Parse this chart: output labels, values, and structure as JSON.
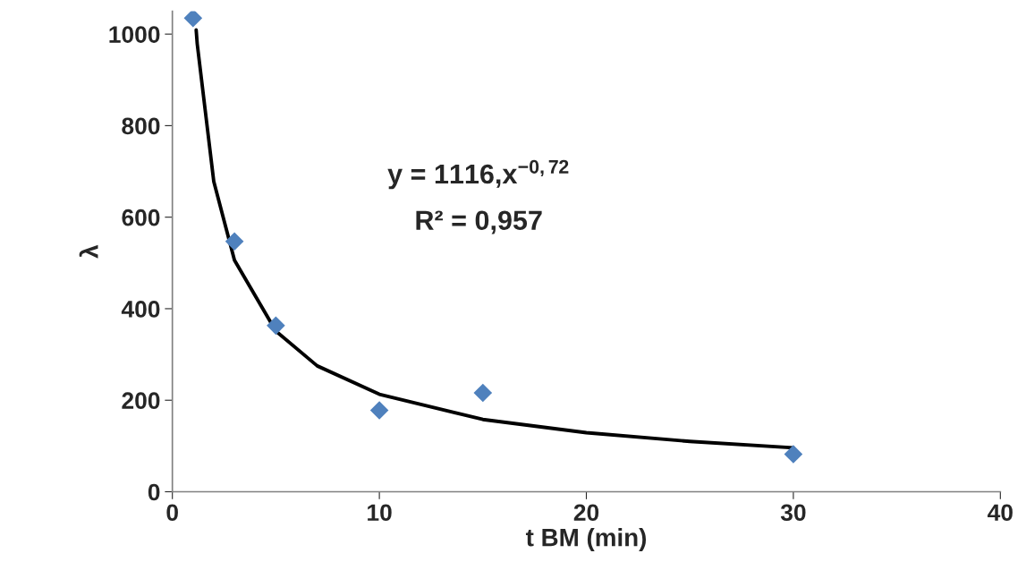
{
  "chart_data": {
    "type": "scatter",
    "xlabel": "t BM (min)",
    "ylabel": "λ",
    "xlim": [
      0,
      40
    ],
    "xticks": [
      0,
      10,
      20,
      30,
      40
    ],
    "ylim": [
      0,
      1050
    ],
    "yticks": [
      0,
      200,
      400,
      600,
      800,
      1000
    ],
    "grid": false,
    "marker": "diamond",
    "series": [
      {
        "color": "#4f81bd",
        "x": [
          1,
          3,
          5,
          10,
          15,
          30
        ],
        "values": [
          1035,
          547,
          363,
          178,
          216,
          82
        ]
      },
      {
        "type": "line",
        "color": "#000000",
        "marker": "none",
        "line_style": "solid",
        "x": [
          1.15,
          1.2,
          2,
          3,
          5,
          7,
          10,
          15,
          20,
          25,
          30
        ],
        "values": [
          1009,
          979,
          678,
          506,
          351,
          275,
          213,
          158,
          129,
          110,
          96
        ]
      }
    ],
    "annotations": [
      "y = 1116,x$^{−0,72}$",
      "R² = 0,957"
    ]
  }
}
